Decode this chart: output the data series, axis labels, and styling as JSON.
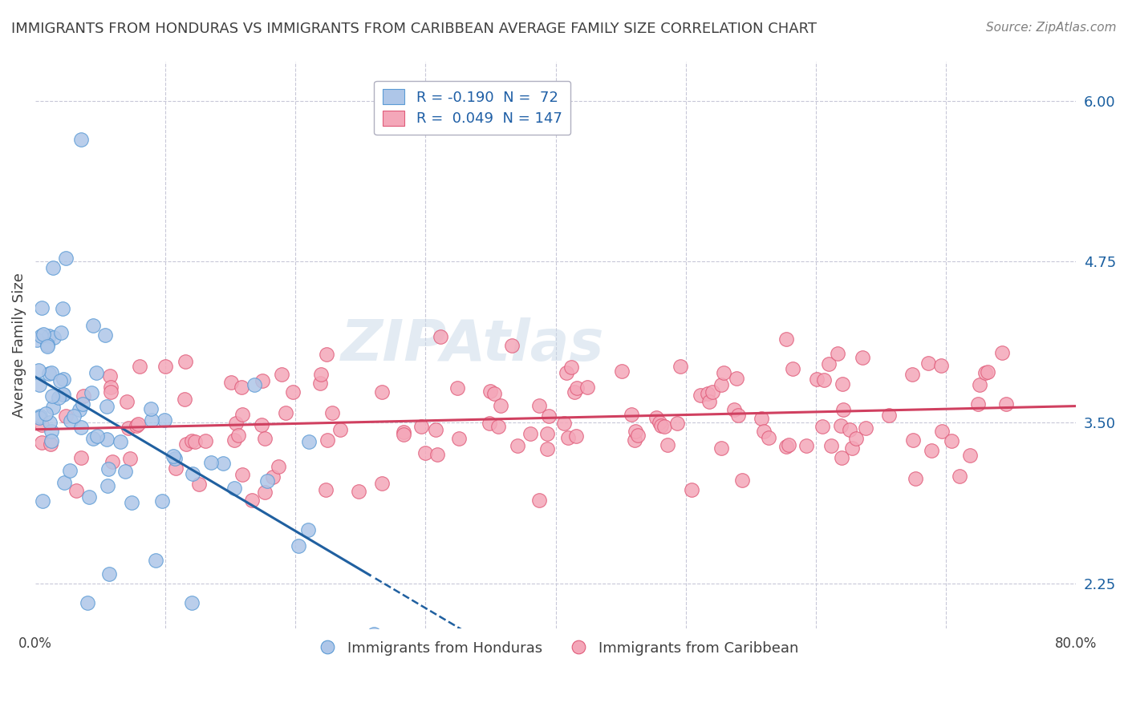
{
  "title": "IMMIGRANTS FROM HONDURAS VS IMMIGRANTS FROM CARIBBEAN AVERAGE FAMILY SIZE CORRELATION CHART",
  "source": "Source: ZipAtlas.com",
  "xlabel": "",
  "ylabel": "Average Family Size",
  "watermark": "ZIPAtlas",
  "x_min": 0.0,
  "x_max": 0.8,
  "y_min": 1.9,
  "y_max": 6.3,
  "y_ticks": [
    2.25,
    3.5,
    4.75,
    6.0
  ],
  "x_ticks": [
    0.0,
    0.1,
    0.2,
    0.3,
    0.4,
    0.5,
    0.6,
    0.7,
    0.8
  ],
  "x_tick_labels": [
    "0.0%",
    "",
    "",
    "",
    "",
    "",
    "",
    "",
    "80.0%"
  ],
  "legend_entries": [
    {
      "label": "R = -0.190  N =  72",
      "color": "#aec6e8"
    },
    {
      "label": "R =  0.049  N = 147",
      "color": "#f4a7b9"
    }
  ],
  "legend_R_color": "#1f5fa6",
  "series1_color": "#aec6e8",
  "series1_edge": "#5b9bd5",
  "series2_color": "#f4a7b9",
  "series2_edge": "#e05c7a",
  "trend1_color": "#2060a0",
  "trend2_color": "#d04060",
  "background_color": "#ffffff",
  "grid_color": "#c8c8d8",
  "title_color": "#404040",
  "source_color": "#808080",
  "watermark_color": "#c8d8e8",
  "series1_R": -0.19,
  "series1_N": 72,
  "series2_R": 0.049,
  "series2_N": 147,
  "series1_seed": 42,
  "series2_seed": 99
}
